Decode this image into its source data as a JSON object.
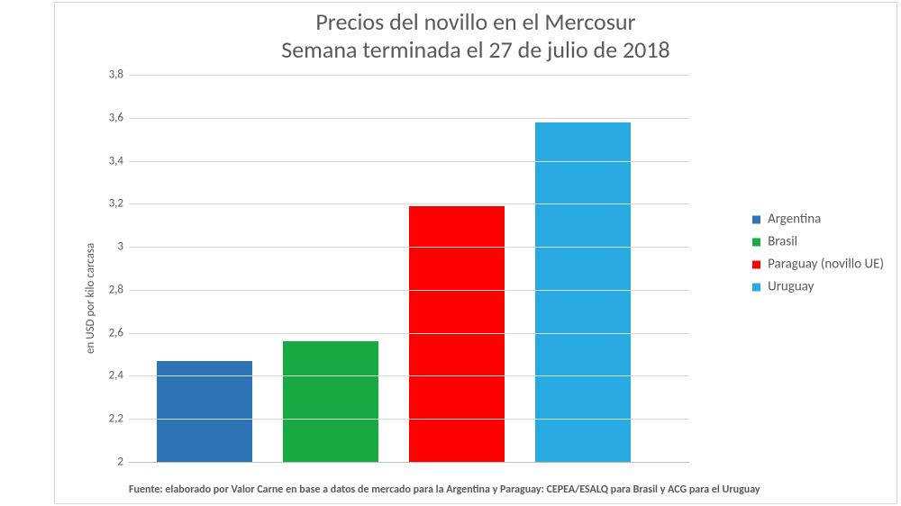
{
  "chart": {
    "type": "bar",
    "title_line1": "Precios del novillo en el Mercosur",
    "title_line2": "Semana terminada el 27 de julio de 2018",
    "title_fontsize": 26,
    "title_color": "#595959",
    "yaxis_label": "en USD por kilo carcasa",
    "label_fontsize": 13,
    "label_color": "#595959",
    "ylim_min": 2.0,
    "ylim_max": 3.8,
    "ytick_step": 0.2,
    "yticks": [
      "2",
      "2,2",
      "2,4",
      "2,6",
      "2,8",
      "3",
      "3,2",
      "3,4",
      "3,6",
      "3,8"
    ],
    "background_color": "#ffffff",
    "border_color": "#d9d9d9",
    "grid_color": "#d9d9d9",
    "axis_line_color": "#bfbfbf",
    "series": [
      {
        "name": "Argentina",
        "value": 2.47,
        "color": "#2e75b6"
      },
      {
        "name": "Brasil",
        "value": 2.56,
        "color": "#18a942"
      },
      {
        "name": "Paraguay (novillo UE)",
        "value": 3.19,
        "color": "#ff0000"
      },
      {
        "name": "Uruguay",
        "value": 3.58,
        "color": "#29abe2"
      }
    ],
    "bar_width_pct": 17,
    "bar_gap_pct": 5.5,
    "bar_start_pct": 5,
    "source_note": "Fuente: elaborado por Valor Carne en base a datos de mercado para la Argentina y Paraguay: CEPEA/ESALQ para Brasil y ACG para el Uruguay",
    "legend_fontsize": 15
  }
}
